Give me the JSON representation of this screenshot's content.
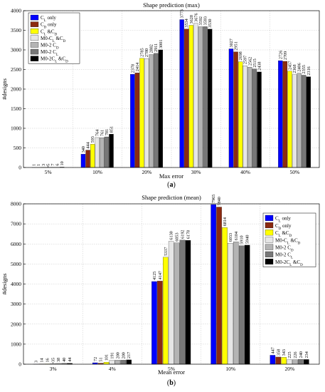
{
  "series_colors": [
    "#0000ff",
    "#8b2a10",
    "#ffff00",
    "#e6e6e6",
    "#b4b4b4",
    "#777777",
    "#000000"
  ],
  "legend_labels": [
    "C_L only",
    "C_D only",
    "C_L &C_D",
    "M0-C_L &C_D",
    "M0-2 C_D",
    "M0-2 C_L",
    "M0-2C_L &C_D"
  ],
  "chart_data": [
    {
      "type": "bar",
      "panel_label": "(a)",
      "title": "Shape prediction (max)",
      "xlabel": "Max error",
      "ylabel": "#designs",
      "ylim": [
        0,
        4000
      ],
      "yticks": [
        0,
        500,
        1000,
        1500,
        2000,
        2500,
        3000,
        3500,
        4000
      ],
      "grid": true,
      "legend_position": "top-left",
      "categories": [
        "5%",
        "10%",
        "20%",
        "30%",
        "40%",
        "50%"
      ],
      "series": [
        {
          "name": "C_L only",
          "values": [
            1,
            340,
            2378,
            3773,
            3027,
            2726
          ]
        },
        {
          "name": "C_D only",
          "values": [
            1,
            444,
            2414,
            3534,
            2951,
            2709
          ]
        },
        {
          "name": "C_L &C_D",
          "values": [
            3,
            593,
            2785,
            3628,
            2698,
            2457
          ]
        },
        {
          "name": "M0-C_L &C_D",
          "values": [
            5,
            764,
            2780,
            3676,
            2597,
            2368
          ]
        },
        {
          "name": "M0-2 C_D",
          "values": [
            7,
            761,
            2882,
            3592,
            2562,
            2406
          ]
        },
        {
          "name": "M0-2 C_L",
          "values": [
            6,
            781,
            2911,
            3593,
            2515,
            2355
          ]
        },
        {
          "name": "M0-2C_L &C_D",
          "values": [
            10,
            851,
            3001,
            3530,
            2438,
            2316
          ]
        }
      ]
    },
    {
      "type": "bar",
      "panel_label": "(b)",
      "title": "Shape prediction (mean)",
      "xlabel": "Mean error",
      "ylabel": "#designs",
      "ylim": [
        0,
        8000
      ],
      "yticks": [
        0,
        1000,
        2000,
        3000,
        4000,
        5000,
        6000,
        7000,
        8000
      ],
      "grid": true,
      "legend_position": "top-right",
      "categories": [
        "3%",
        "4%",
        "5%",
        "10%",
        "20%"
      ],
      "series": [
        {
          "name": "C_L only",
          "values": [
            3,
            72,
            4125,
            7965,
            447
          ]
        },
        {
          "name": "C_D only",
          "values": [
            14,
            51,
            4147,
            7840,
            358
          ]
        },
        {
          "name": "C_L &C_D",
          "values": [
            16,
            101,
            5337,
            6814,
            343
          ]
        },
        {
          "name": "M0-C_L &C_D",
          "values": [
            35,
            191,
            6130,
            6033,
            225
          ]
        },
        {
          "name": "M0-2 C_D",
          "values": [
            38,
            200,
            6053,
            6104,
            226
          ]
        },
        {
          "name": "M0-2 C_L",
          "values": [
            40,
            200,
            6192,
            5910,
            240
          ]
        },
        {
          "name": "M0-2C_L &C_D",
          "values": [
            44,
            217,
            6178,
            5940,
            234
          ]
        }
      ]
    }
  ]
}
